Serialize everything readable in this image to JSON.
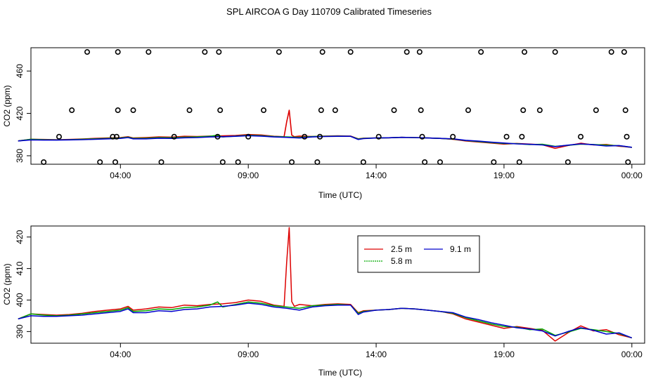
{
  "title": "SPL AIRCOA G  Day 110709  Calibrated Timeseries",
  "chart_data": [
    {
      "type": "scatter+line",
      "xlabel": "Time (UTC)",
      "ylabel": "CO2 (ppm)",
      "xlim_hours": [
        0.5,
        24.5
      ],
      "ylim": [
        372,
        482
      ],
      "xtick_labels": [
        "04:00",
        "09:00",
        "14:00",
        "19:00",
        "00:00"
      ],
      "xtick_hours": [
        4,
        9,
        14,
        19,
        24
      ],
      "ytick_values": [
        380,
        420,
        460
      ],
      "ytick_labels": [
        "380",
        "420",
        "460"
      ],
      "calibration_points": [
        {
          "x": 1.0,
          "y": 374
        },
        {
          "x": 1.6,
          "y": 398
        },
        {
          "x": 2.1,
          "y": 423
        },
        {
          "x": 2.7,
          "y": 478
        },
        {
          "x": 3.2,
          "y": 374
        },
        {
          "x": 3.7,
          "y": 398
        },
        {
          "x": 3.8,
          "y": 374
        },
        {
          "x": 3.85,
          "y": 398
        },
        {
          "x": 3.9,
          "y": 423
        },
        {
          "x": 3.9,
          "y": 478
        },
        {
          "x": 4.5,
          "y": 423
        },
        {
          "x": 5.1,
          "y": 478
        },
        {
          "x": 5.6,
          "y": 374
        },
        {
          "x": 6.1,
          "y": 398
        },
        {
          "x": 6.7,
          "y": 423
        },
        {
          "x": 7.3,
          "y": 478
        },
        {
          "x": 7.8,
          "y": 398
        },
        {
          "x": 7.85,
          "y": 478
        },
        {
          "x": 7.9,
          "y": 423
        },
        {
          "x": 8.0,
          "y": 374
        },
        {
          "x": 8.6,
          "y": 374
        },
        {
          "x": 9.0,
          "y": 398
        },
        {
          "x": 9.6,
          "y": 423
        },
        {
          "x": 10.2,
          "y": 478
        },
        {
          "x": 10.7,
          "y": 374
        },
        {
          "x": 11.2,
          "y": 398
        },
        {
          "x": 11.7,
          "y": 374
        },
        {
          "x": 11.8,
          "y": 398
        },
        {
          "x": 11.85,
          "y": 423
        },
        {
          "x": 11.9,
          "y": 478
        },
        {
          "x": 12.4,
          "y": 423
        },
        {
          "x": 13.0,
          "y": 478
        },
        {
          "x": 13.5,
          "y": 374
        },
        {
          "x": 14.1,
          "y": 398
        },
        {
          "x": 14.7,
          "y": 423
        },
        {
          "x": 15.2,
          "y": 478
        },
        {
          "x": 15.7,
          "y": 478
        },
        {
          "x": 15.75,
          "y": 423
        },
        {
          "x": 15.8,
          "y": 398
        },
        {
          "x": 15.9,
          "y": 374
        },
        {
          "x": 16.5,
          "y": 374
        },
        {
          "x": 17.0,
          "y": 398
        },
        {
          "x": 17.6,
          "y": 423
        },
        {
          "x": 18.1,
          "y": 478
        },
        {
          "x": 18.6,
          "y": 374
        },
        {
          "x": 19.1,
          "y": 398
        },
        {
          "x": 19.6,
          "y": 374
        },
        {
          "x": 19.7,
          "y": 398
        },
        {
          "x": 19.75,
          "y": 423
        },
        {
          "x": 19.8,
          "y": 478
        },
        {
          "x": 20.4,
          "y": 423
        },
        {
          "x": 21.0,
          "y": 478
        },
        {
          "x": 21.5,
          "y": 374
        },
        {
          "x": 22.0,
          "y": 398
        },
        {
          "x": 22.6,
          "y": 423
        },
        {
          "x": 23.2,
          "y": 478
        },
        {
          "x": 23.7,
          "y": 478
        },
        {
          "x": 23.75,
          "y": 423
        },
        {
          "x": 23.8,
          "y": 398
        },
        {
          "x": 23.85,
          "y": 374
        }
      ]
    },
    {
      "type": "line",
      "xlabel": "Time (UTC)",
      "ylabel": "CO2 (ppm)",
      "xlim_hours": [
        0.5,
        24.5
      ],
      "ylim": [
        386.3,
        423.5
      ],
      "xtick_labels": [
        "04:00",
        "09:00",
        "14:00",
        "19:00",
        "00:00"
      ],
      "xtick_hours": [
        4,
        9,
        14,
        19,
        24
      ],
      "ytick_values": [
        390,
        400,
        410,
        420
      ],
      "ytick_labels": [
        "390",
        "400",
        "410",
        "420"
      ],
      "legend": {
        "position": "top-center",
        "entries": [
          "2.5 m",
          "9.1 m",
          "5.8 m"
        ]
      },
      "series": [
        {
          "name": "2.5 m",
          "color": "#dd0000",
          "x": [
            0.0,
            0.5,
            1.0,
            1.5,
            2.0,
            2.5,
            3.0,
            3.5,
            4.0,
            4.3,
            4.5,
            5.0,
            5.5,
            6.0,
            6.5,
            7.0,
            7.5,
            8.0,
            8.5,
            9.0,
            9.5,
            10.0,
            10.4,
            10.5,
            10.6,
            10.7,
            10.8,
            11.0,
            11.5,
            12.0,
            12.5,
            13.0,
            13.3,
            13.5,
            14.0,
            14.5,
            15.0,
            15.5,
            16.0,
            16.5,
            17.0,
            17.5,
            18.0,
            18.5,
            19.0,
            19.5,
            20.0,
            20.5,
            21.0,
            21.5,
            22.0,
            22.5,
            23.0,
            23.5,
            24.0
          ],
          "y": [
            394.0,
            395.6,
            395.4,
            395.2,
            395.4,
            395.8,
            396.4,
            396.8,
            397.2,
            398.0,
            396.8,
            397.2,
            397.8,
            397.6,
            398.4,
            398.2,
            398.6,
            398.8,
            399.2,
            400.0,
            399.6,
            398.4,
            398.0,
            412.0,
            423.0,
            399.5,
            398.0,
            398.6,
            398.2,
            398.6,
            398.8,
            398.6,
            396.0,
            396.6,
            396.8,
            397.0,
            397.4,
            397.2,
            396.8,
            396.4,
            395.6,
            394.0,
            393.0,
            392.0,
            391.0,
            391.6,
            391.0,
            390.4,
            387.0,
            389.6,
            391.8,
            390.2,
            390.6,
            389.0,
            388.0
          ]
        },
        {
          "name": "5.8 m",
          "color": "#00aa00",
          "x": [
            0.0,
            0.5,
            1.0,
            1.5,
            2.0,
            2.5,
            3.0,
            3.5,
            4.0,
            4.3,
            4.5,
            5.0,
            5.5,
            6.0,
            6.5,
            7.0,
            7.5,
            7.8,
            8.0,
            8.5,
            9.0,
            9.5,
            10.0,
            10.5,
            11.0,
            11.5,
            12.0,
            12.5,
            13.0,
            13.3,
            13.5,
            14.0,
            14.5,
            15.0,
            15.5,
            16.0,
            16.5,
            17.0,
            17.5,
            18.0,
            18.5,
            19.0,
            19.5,
            20.0,
            20.5,
            21.0,
            21.5,
            22.0,
            22.5,
            23.0,
            23.5,
            24.0
          ],
          "y": [
            394.0,
            395.6,
            395.2,
            395.0,
            395.2,
            395.6,
            396.0,
            396.4,
            396.8,
            397.6,
            396.4,
            396.6,
            397.2,
            397.0,
            397.6,
            397.8,
            398.4,
            399.4,
            397.8,
            398.6,
            399.4,
            399.0,
            398.2,
            397.8,
            397.4,
            398.2,
            398.4,
            398.6,
            398.4,
            395.8,
            396.4,
            396.8,
            397.0,
            397.4,
            397.2,
            396.8,
            396.4,
            395.8,
            394.4,
            393.4,
            392.4,
            391.6,
            391.4,
            390.6,
            390.8,
            388.8,
            389.8,
            391.0,
            390.6,
            390.0,
            389.4,
            388.0
          ]
        },
        {
          "name": "9.1 m",
          "color": "#0000cc",
          "x": [
            0.0,
            0.5,
            1.0,
            1.5,
            2.0,
            2.5,
            3.0,
            3.5,
            4.0,
            4.3,
            4.5,
            5.0,
            5.5,
            6.0,
            6.5,
            7.0,
            7.5,
            8.0,
            8.5,
            9.0,
            9.5,
            10.0,
            10.5,
            11.0,
            11.5,
            12.0,
            12.5,
            13.0,
            13.3,
            13.5,
            14.0,
            14.5,
            15.0,
            15.5,
            16.0,
            16.5,
            17.0,
            17.5,
            18.0,
            18.5,
            19.0,
            19.5,
            20.0,
            20.5,
            21.0,
            21.5,
            22.0,
            22.5,
            23.0,
            23.5,
            24.0
          ],
          "y": [
            394.0,
            395.0,
            394.8,
            394.8,
            395.0,
            395.2,
            395.6,
            396.0,
            396.4,
            397.2,
            396.0,
            396.0,
            396.6,
            396.4,
            397.0,
            397.2,
            397.8,
            398.0,
            398.4,
            399.0,
            398.6,
            397.8,
            397.4,
            396.8,
            397.8,
            398.2,
            398.4,
            398.4,
            395.4,
            396.2,
            396.8,
            397.0,
            397.4,
            397.2,
            396.8,
            396.4,
            396.0,
            394.6,
            393.8,
            392.8,
            392.0,
            391.2,
            390.8,
            390.2,
            388.6,
            390.0,
            391.2,
            390.4,
            389.2,
            389.6,
            388.0
          ]
        }
      ]
    }
  ]
}
